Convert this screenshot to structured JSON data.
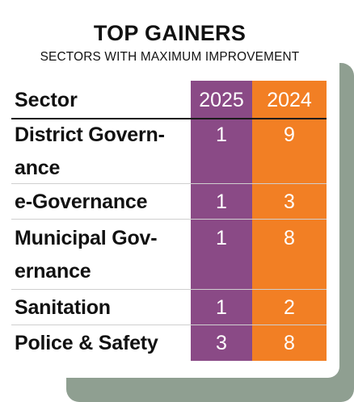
{
  "title": "TOP GAINERS",
  "subtitle": "SECTORS WITH MAXIMUM IMPROVEMENT",
  "colors": {
    "col_2025": "#8a4a86",
    "col_2024": "#f27f24",
    "shadow": "#8f9f91"
  },
  "table": {
    "headers": {
      "sector": "Sector",
      "y2025": "2025",
      "y2024": "2024"
    },
    "rows": [
      {
        "line1": "District Govern-",
        "line2": "ance",
        "y2025": "1",
        "y2024": "9"
      },
      {
        "line1": "e-Governance",
        "line2": "",
        "y2025": "1",
        "y2024": "3"
      },
      {
        "line1": "Municipal Gov-",
        "line2": "ernance",
        "y2025": "1",
        "y2024": "8"
      },
      {
        "line1": "Sanitation",
        "line2": "",
        "y2025": "1",
        "y2024": "2"
      },
      {
        "line1": "Police & Safety",
        "line2": "",
        "y2025": "3",
        "y2024": "8"
      }
    ]
  }
}
